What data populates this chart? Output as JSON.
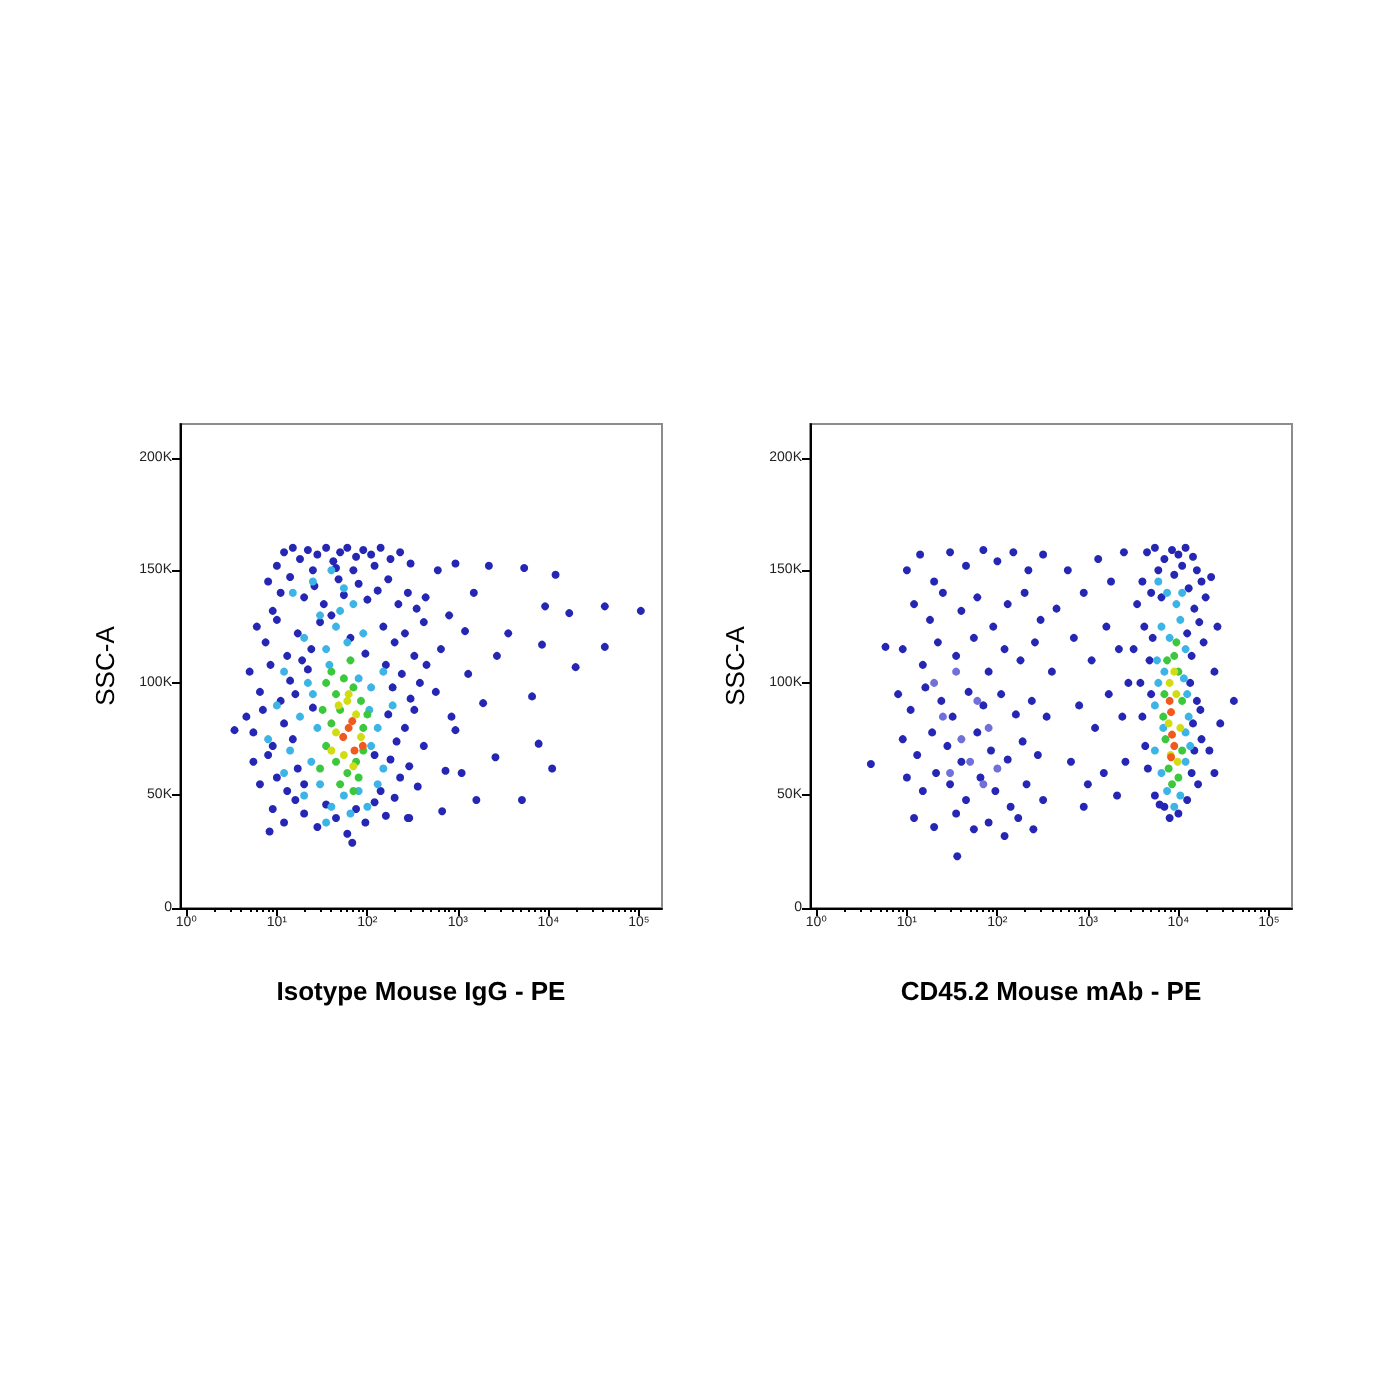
{
  "chart_data": [
    {
      "type": "scatter",
      "xlabel": "Isotype Mouse IgG - PE",
      "ylabel": "SSC-A",
      "log": "x",
      "marker": "circle",
      "xlim": [
        0.85,
        180000
      ],
      "xticks": [
        {
          "value": 1,
          "label": "10⁰"
        },
        {
          "value": 2,
          "label": null
        },
        {
          "value": 3,
          "label": null
        },
        {
          "value": 4,
          "label": null
        },
        {
          "value": 5,
          "label": null
        },
        {
          "value": 6,
          "label": null
        },
        {
          "value": 7,
          "label": null
        },
        {
          "value": 8,
          "label": null
        },
        {
          "value": 9,
          "label": null
        },
        {
          "value": 10,
          "label": "10¹"
        },
        {
          "value": 20,
          "label": null
        },
        {
          "value": 30,
          "label": null
        },
        {
          "value": 40,
          "label": null
        },
        {
          "value": 50,
          "label": null
        },
        {
          "value": 60,
          "label": null
        },
        {
          "value": 70,
          "label": null
        },
        {
          "value": 80,
          "label": null
        },
        {
          "value": 90,
          "label": null
        },
        {
          "value": 100,
          "label": "10²"
        },
        {
          "value": 200,
          "label": null
        },
        {
          "value": 300,
          "label": null
        },
        {
          "value": 400,
          "label": null
        },
        {
          "value": 500,
          "label": null
        },
        {
          "value": 600,
          "label": null
        },
        {
          "value": 700,
          "label": null
        },
        {
          "value": 800,
          "label": null
        },
        {
          "value": 900,
          "label": null
        },
        {
          "value": 1000,
          "label": "10³"
        },
        {
          "value": 2000,
          "label": null
        },
        {
          "value": 3000,
          "label": null
        },
        {
          "value": 4000,
          "label": null
        },
        {
          "value": 5000,
          "label": null
        },
        {
          "value": 6000,
          "label": null
        },
        {
          "value": 7000,
          "label": null
        },
        {
          "value": 8000,
          "label": null
        },
        {
          "value": 9000,
          "label": null
        },
        {
          "value": 10000,
          "label": "10⁴"
        },
        {
          "value": 20000,
          "label": null
        },
        {
          "value": 30000,
          "label": null
        },
        {
          "value": 40000,
          "label": null
        },
        {
          "value": 50000,
          "label": null
        },
        {
          "value": 60000,
          "label": null
        },
        {
          "value": 70000,
          "label": null
        },
        {
          "value": 80000,
          "label": null
        },
        {
          "value": 90000,
          "label": null
        },
        {
          "value": 100000,
          "label": "10⁵"
        }
      ],
      "ylim": [
        0,
        215000
      ],
      "yticks": [
        0,
        {
          "value": 50000,
          "label": "50K"
        },
        {
          "value": 100000,
          "label": "100K"
        },
        {
          "value": 150000,
          "label": "150K"
        },
        {
          "value": 200000,
          "label": "200K"
        }
      ],
      "series": [
        {
          "color": "#2626b4",
          "x": [
            12,
            15,
            18,
            22,
            28,
            35,
            42,
            50,
            60,
            75,
            90,
            110,
            140,
            180,
            230,
            10,
            25,
            45,
            70,
            120,
            300,
            8,
            11,
            14,
            20,
            26,
            33,
            48,
            55,
            80,
            100,
            130,
            170,
            220,
            280,
            350,
            9,
            40,
            6,
            7.5,
            10,
            13,
            17,
            24,
            30,
            65,
            95,
            150,
            200,
            260,
            330,
            420,
            19,
            5,
            6.5,
            8.5,
            11,
            14,
            16,
            160,
            190,
            240,
            300,
            380,
            450,
            22,
            4.6,
            5.5,
            7,
            9,
            12,
            15,
            170,
            210,
            260,
            330,
            420,
            25,
            5.5,
            6.5,
            8,
            10,
            13,
            17,
            20,
            140,
            180,
            230,
            290,
            360,
            120,
            9,
            12,
            16,
            20,
            28,
            35,
            45,
            60,
            75,
            95,
            120,
            160,
            200,
            280,
            2200,
            5400,
            12000,
            105000,
            42000,
            17000,
            9200,
            42000,
            20000,
            8500,
            3600,
            11000,
            5100,
            6600,
            7800,
            2700,
            1900,
            2600,
            1600,
            940,
            1200,
            1300,
            940,
            730,
            670,
            290,
            440,
            570,
            600,
            800,
            1500,
            650,
            850,
            1100,
            3.4,
            8.3,
            68
          ],
          "values": [
            158000,
            160000,
            155000,
            159000,
            157000,
            160000,
            154000,
            158000,
            160000,
            156000,
            159000,
            157000,
            160000,
            155000,
            158000,
            152000,
            150000,
            151000,
            150000,
            152000,
            153000,
            145000,
            140000,
            147000,
            138000,
            143000,
            135000,
            146000,
            139000,
            144000,
            137000,
            141000,
            146000,
            135000,
            140000,
            133000,
            132000,
            130000,
            125000,
            118000,
            128000,
            112000,
            122000,
            115000,
            127000,
            120000,
            113000,
            125000,
            118000,
            122000,
            112000,
            127000,
            110000,
            105000,
            96000,
            108000,
            92000,
            101000,
            95000,
            108000,
            98000,
            104000,
            93000,
            100000,
            108000,
            106000,
            85000,
            78000,
            88000,
            72000,
            82000,
            75000,
            86000,
            74000,
            80000,
            88000,
            72000,
            89000,
            65000,
            55000,
            68000,
            58000,
            52000,
            62000,
            55000,
            52000,
            66000,
            58000,
            63000,
            54000,
            68000,
            44000,
            38000,
            48000,
            42000,
            36000,
            46000,
            40000,
            33000,
            44000,
            38000,
            47000,
            41000,
            49000,
            40000,
            152000,
            151000,
            148000,
            132000,
            134000,
            131000,
            134000,
            116000,
            107000,
            117000,
            122000,
            62000,
            48000,
            94000,
            73000,
            112000,
            91000,
            67000,
            48000,
            153000,
            123000,
            104000,
            79000,
            61000,
            43000,
            40000,
            138000,
            96000,
            150000,
            130000,
            140000,
            115000,
            85000,
            60000,
            79000,
            34000,
            29000
          ]
        },
        {
          "color": "#3cb4e6",
          "x": [
            15,
            25,
            40,
            55,
            30,
            45,
            70,
            20,
            35,
            60,
            90,
            12,
            22,
            38,
            80,
            110,
            150,
            10,
            18,
            28,
            105,
            130,
            190,
            8,
            14,
            24,
            110,
            150,
            12,
            20,
            30,
            40,
            55,
            80,
            100,
            65,
            35,
            130,
            50,
            25
          ],
          "values": [
            140000,
            145000,
            150000,
            142000,
            130000,
            125000,
            135000,
            120000,
            115000,
            118000,
            122000,
            105000,
            100000,
            108000,
            102000,
            98000,
            105000,
            90000,
            85000,
            80000,
            88000,
            80000,
            90000,
            75000,
            70000,
            65000,
            72000,
            62000,
            60000,
            50000,
            55000,
            45000,
            50000,
            52000,
            45000,
            42000,
            38000,
            55000,
            132000,
            95000
          ]
        },
        {
          "color": "#3cc83c",
          "x": [
            35,
            45,
            55,
            70,
            85,
            32,
            40,
            50,
            90,
            100,
            35,
            45,
            60,
            75,
            90,
            30,
            50,
            70,
            40,
            65,
            80
          ],
          "values": [
            100000,
            95000,
            102000,
            98000,
            92000,
            88000,
            82000,
            88000,
            80000,
            86000,
            72000,
            65000,
            60000,
            65000,
            70000,
            62000,
            55000,
            52000,
            105000,
            110000,
            58000
          ]
        },
        {
          "color": "#d2dc14",
          "x": [
            48,
            60,
            75,
            45,
            85,
            55,
            70,
            62,
            40
          ],
          "values": [
            90000,
            92000,
            86000,
            78000,
            76000,
            68000,
            63000,
            95000,
            70000
          ]
        },
        {
          "color": "#f05a1e",
          "x": [
            68,
            54,
            89,
            62,
            72
          ],
          "values": [
            83000,
            76000,
            72000,
            80000,
            70000
          ]
        }
      ]
    },
    {
      "type": "scatter",
      "xlabel": "CD45.2 Mouse mAb - PE",
      "ylabel": "SSC-A",
      "log": "x",
      "marker": "circle",
      "xlim": [
        0.85,
        180000
      ],
      "xticks": [
        {
          "value": 1,
          "label": "10⁰"
        },
        {
          "value": 2,
          "label": null
        },
        {
          "value": 3,
          "label": null
        },
        {
          "value": 4,
          "label": null
        },
        {
          "value": 5,
          "label": null
        },
        {
          "value": 6,
          "label": null
        },
        {
          "value": 7,
          "label": null
        },
        {
          "value": 8,
          "label": null
        },
        {
          "value": 9,
          "label": null
        },
        {
          "value": 10,
          "label": "10¹"
        },
        {
          "value": 20,
          "label": null
        },
        {
          "value": 30,
          "label": null
        },
        {
          "value": 40,
          "label": null
        },
        {
          "value": 50,
          "label": null
        },
        {
          "value": 60,
          "label": null
        },
        {
          "value": 70,
          "label": null
        },
        {
          "value": 80,
          "label": null
        },
        {
          "value": 90,
          "label": null
        },
        {
          "value": 100,
          "label": "10²"
        },
        {
          "value": 200,
          "label": null
        },
        {
          "value": 300,
          "label": null
        },
        {
          "value": 400,
          "label": null
        },
        {
          "value": 500,
          "label": null
        },
        {
          "value": 600,
          "label": null
        },
        {
          "value": 700,
          "label": null
        },
        {
          "value": 800,
          "label": null
        },
        {
          "value": 900,
          "label": null
        },
        {
          "value": 1000,
          "label": "10³"
        },
        {
          "value": 2000,
          "label": null
        },
        {
          "value": 3000,
          "label": null
        },
        {
          "value": 4000,
          "label": null
        },
        {
          "value": 5000,
          "label": null
        },
        {
          "value": 6000,
          "label": null
        },
        {
          "value": 7000,
          "label": null
        },
        {
          "value": 8000,
          "label": null
        },
        {
          "value": 9000,
          "label": null
        },
        {
          "value": 10000,
          "label": "10⁴"
        },
        {
          "value": 20000,
          "label": null
        },
        {
          "value": 30000,
          "label": null
        },
        {
          "value": 40000,
          "label": null
        },
        {
          "value": 50000,
          "label": null
        },
        {
          "value": 60000,
          "label": null
        },
        {
          "value": 70000,
          "label": null
        },
        {
          "value": 80000,
          "label": null
        },
        {
          "value": 90000,
          "label": null
        },
        {
          "value": 100000,
          "label": "10⁵"
        }
      ],
      "ylim": [
        0,
        215000
      ],
      "yticks": [
        0,
        {
          "value": 50000,
          "label": "50K"
        },
        {
          "value": 100000,
          "label": "100K"
        },
        {
          "value": 150000,
          "label": "150K"
        },
        {
          "value": 200000,
          "label": "200K"
        }
      ],
      "series": [
        {
          "color": "#2626b4",
          "x": [
            4500,
            5500,
            7000,
            8500,
            10000,
            12000,
            14500,
            6000,
            9000,
            11000,
            16000,
            4000,
            5000,
            13000,
            18000,
            3500,
            6500,
            15000,
            20000,
            4200,
            5200,
            12500,
            17000,
            3200,
            4800,
            14000,
            19000,
            3800,
            5000,
            13500,
            16000,
            4000,
            14500,
            17500,
            4300,
            15000,
            18000,
            4600,
            14000,
            16500,
            5500,
            12500,
            7000,
            10000,
            8000,
            6200,
            41000,
            29000,
            25000,
            23000,
            27000,
            25000,
            22000,
            10,
            14,
            20,
            30,
            45,
            70,
            100,
            150,
            220,
            320,
            12,
            18,
            25,
            40,
            60,
            90,
            130,
            200,
            300,
            450,
            9,
            15,
            22,
            35,
            55,
            80,
            120,
            180,
            260,
            400,
            8,
            11,
            16,
            24,
            32,
            48,
            70,
            110,
            160,
            240,
            350,
            9,
            13,
            19,
            28,
            40,
            60,
            85,
            130,
            190,
            280,
            10,
            15,
            21,
            30,
            45,
            65,
            95,
            140,
            210,
            320,
            12,
            20,
            35,
            55,
            80,
            120,
            170,
            250,
            36,
            4,
            5.8,
            600,
            900,
            1300,
            1800,
            2500,
            700,
            1100,
            1600,
            2200,
            800,
            1200,
            1700,
            2400,
            650,
            1000,
            1500,
            2100,
            900,
            2800,
            2600
          ],
          "values": [
            158000,
            160000,
            155000,
            159000,
            157000,
            160000,
            156000,
            150000,
            148000,
            152000,
            150000,
            145000,
            140000,
            142000,
            145000,
            135000,
            138000,
            133000,
            138000,
            125000,
            120000,
            122000,
            127000,
            115000,
            110000,
            112000,
            118000,
            100000,
            95000,
            100000,
            92000,
            85000,
            82000,
            88000,
            72000,
            70000,
            75000,
            62000,
            60000,
            55000,
            50000,
            48000,
            45000,
            42000,
            40000,
            46000,
            92000,
            82000,
            60000,
            147000,
            125000,
            105000,
            70000,
            150000,
            157000,
            145000,
            158000,
            152000,
            159000,
            154000,
            158000,
            150000,
            157000,
            135000,
            128000,
            140000,
            132000,
            138000,
            125000,
            135000,
            140000,
            128000,
            133000,
            115000,
            108000,
            118000,
            112000,
            120000,
            105000,
            115000,
            110000,
            118000,
            105000,
            95000,
            88000,
            98000,
            92000,
            85000,
            96000,
            90000,
            95000,
            86000,
            92000,
            85000,
            75000,
            68000,
            78000,
            72000,
            65000,
            78000,
            70000,
            66000,
            74000,
            68000,
            58000,
            52000,
            60000,
            55000,
            48000,
            58000,
            52000,
            45000,
            55000,
            48000,
            40000,
            36000,
            42000,
            35000,
            38000,
            32000,
            40000,
            35000,
            23000,
            64000,
            116000,
            150000,
            140000,
            155000,
            145000,
            158000,
            120000,
            110000,
            125000,
            115000,
            90000,
            80000,
            95000,
            85000,
            65000,
            55000,
            60000,
            50000,
            45000,
            100000,
            65000
          ]
        },
        {
          "color": "#7070d8",
          "x": [
            25,
            40,
            60,
            30,
            50,
            80,
            20,
            100,
            35,
            70
          ],
          "values": [
            85000,
            75000,
            92000,
            60000,
            65000,
            80000,
            100000,
            62000,
            105000,
            55000
          ]
        },
        {
          "color": "#3cb4e6",
          "x": [
            6000,
            7500,
            9500,
            11000,
            6500,
            8000,
            10500,
            12000,
            5800,
            7000,
            11500,
            12500,
            5500,
            6800,
            12000,
            13000,
            5500,
            6500,
            12000,
            7500,
            10500,
            9000,
            6000,
            13500
          ],
          "values": [
            145000,
            140000,
            135000,
            140000,
            125000,
            120000,
            128000,
            115000,
            110000,
            105000,
            102000,
            95000,
            90000,
            80000,
            78000,
            85000,
            70000,
            60000,
            65000,
            52000,
            50000,
            45000,
            100000,
            72000
          ]
        },
        {
          "color": "#3cc83c",
          "x": [
            7500,
            9000,
            10000,
            7000,
            11000,
            7200,
            11000,
            7800,
            10000,
            8500,
            9500,
            6800
          ],
          "values": [
            110000,
            112000,
            105000,
            95000,
            92000,
            75000,
            70000,
            62000,
            58000,
            55000,
            118000,
            85000
          ]
        },
        {
          "color": "#d2dc14",
          "x": [
            8000,
            9500,
            7800,
            10500,
            8200,
            9800,
            9000
          ],
          "values": [
            100000,
            95000,
            82000,
            80000,
            68000,
            65000,
            105000
          ]
        },
        {
          "color": "#f05a1e",
          "x": [
            8300,
            8500,
            8300,
            9000,
            8000
          ],
          "values": [
            87000,
            77000,
            67000,
            72000,
            92000
          ]
        }
      ]
    }
  ]
}
